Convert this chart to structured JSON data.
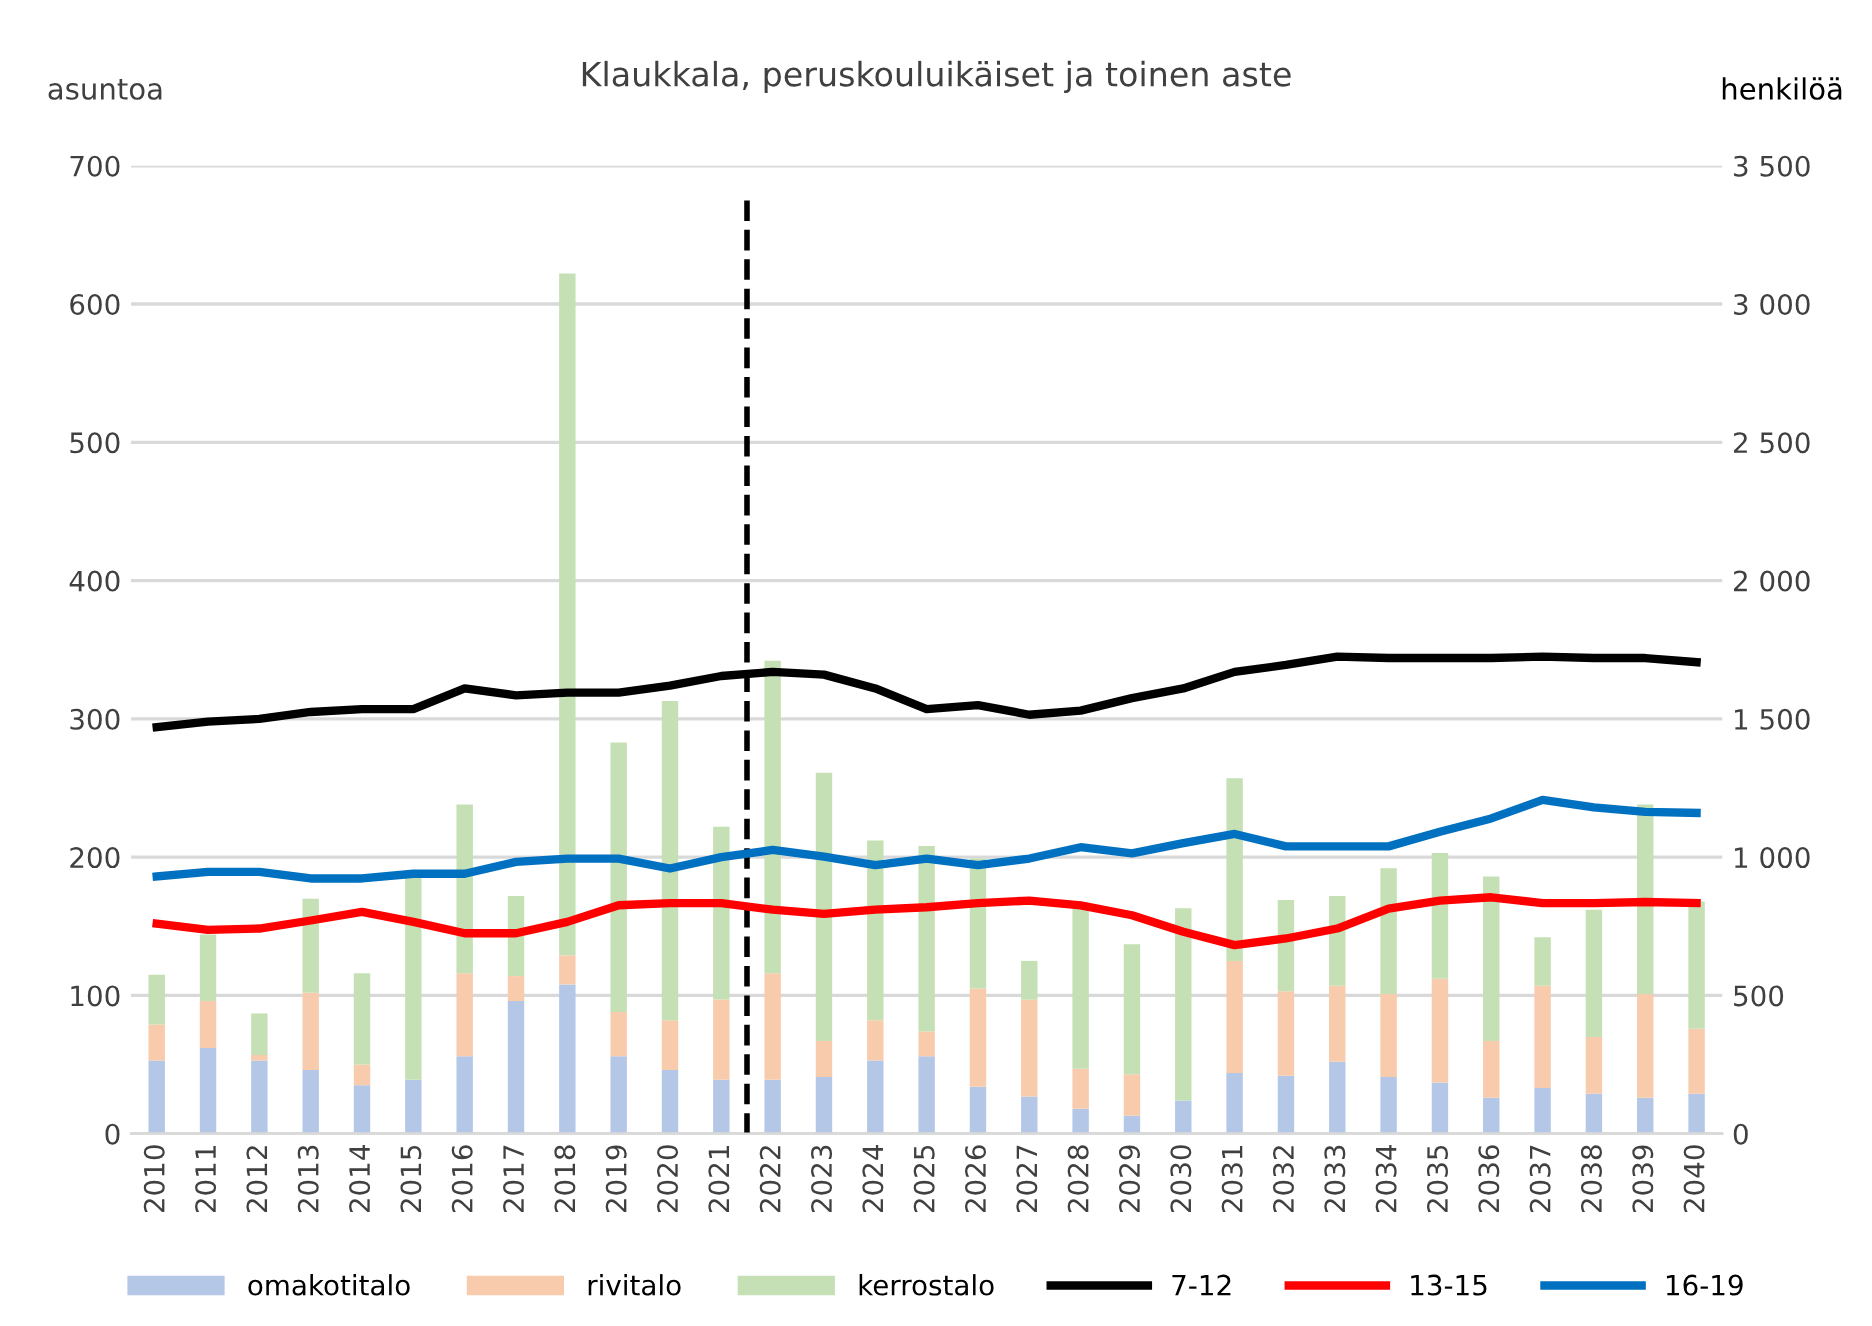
{
  "chart_data": {
    "type": "bar",
    "stacked": true,
    "title": "Klaukkala, peruskouluikäiset ja toinen aste",
    "ylabel": "asuntoa",
    "y2label": "henkilöä",
    "x": [
      2010,
      2011,
      2012,
      2013,
      2014,
      2015,
      2016,
      2017,
      2018,
      2019,
      2020,
      2021,
      2022,
      2023,
      2024,
      2025,
      2026,
      2027,
      2028,
      2029,
      2030,
      2031,
      2032,
      2033,
      2034,
      2035,
      2036,
      2037,
      2038,
      2039,
      2040
    ],
    "xlim": [
      2009.5,
      2040.5
    ],
    "xticks": [
      2010,
      2011,
      2012,
      2013,
      2014,
      2015,
      2016,
      2017,
      2018,
      2019,
      2020,
      2021,
      2022,
      2023,
      2024,
      2025,
      2026,
      2027,
      2028,
      2029,
      2030,
      2031,
      2032,
      2033,
      2034,
      2035,
      2036,
      2037,
      2038,
      2039,
      2040
    ],
    "ylim": [
      0,
      700
    ],
    "yticks": [
      0,
      100,
      200,
      300,
      400,
      500,
      600,
      700
    ],
    "y2lim": [
      0,
      3500
    ],
    "y2ticks": [
      0,
      {
        "value": 500,
        "label": "500"
      },
      {
        "value": 1000,
        "label": "1 000"
      },
      {
        "value": 1500,
        "label": "1 500"
      },
      {
        "value": 2000,
        "label": "2 000"
      },
      {
        "value": 2500,
        "label": "2 500"
      },
      {
        "value": 3000,
        "label": "3 000"
      },
      {
        "value": 3500,
        "label": "3 500"
      }
    ],
    "grid": "y",
    "legend": "bottom",
    "ref_lines": [
      {
        "axis": "x",
        "value": 2021.5,
        "color": "#000000",
        "line_style": "dashed"
      }
    ],
    "series": [
      {
        "name": "omakotitalo",
        "color": "#b4c7e7",
        "values": [
          53,
          62,
          53,
          46,
          35,
          39,
          56,
          96,
          108,
          56,
          46,
          39,
          39,
          41,
          53,
          56,
          34,
          27,
          18,
          13,
          24,
          44,
          42,
          52,
          41,
          37,
          26,
          33,
          29,
          26,
          29
        ]
      },
      {
        "name": "rivitalo",
        "color": "#f8cbad",
        "values": [
          26,
          34,
          4,
          56,
          15,
          0,
          60,
          18,
          21,
          32,
          36,
          58,
          77,
          26,
          29,
          18,
          71,
          70,
          29,
          30,
          0,
          81,
          61,
          55,
          60,
          75,
          41,
          74,
          41,
          75,
          47
        ]
      },
      {
        "name": "kerrostalo",
        "color": "#c5e0b4",
        "values": [
          36,
          48,
          30,
          68,
          66,
          146,
          122,
          58,
          493,
          195,
          231,
          125,
          226,
          194,
          130,
          134,
          94,
          28,
          116,
          94,
          139,
          132,
          66,
          65,
          91,
          91,
          119,
          35,
          92,
          137,
          92
        ]
      },
      {
        "name": "7-12",
        "type": "line",
        "axis": "y2",
        "color": "#000000",
        "values": [
          1470,
          1490,
          1500,
          1525,
          1535,
          1535,
          1610,
          1585,
          1595,
          1595,
          1620,
          1655,
          1670,
          1660,
          1610,
          1535,
          1550,
          1515,
          1530,
          1575,
          1610,
          1670,
          1695,
          1725,
          1720,
          1720,
          1720,
          1725,
          1720,
          1720,
          1705
        ]
      },
      {
        "name": "13-15",
        "type": "line",
        "axis": "y2",
        "color": "#ff0000",
        "values": [
          760,
          737,
          742,
          771,
          802,
          766,
          725,
          725,
          766,
          826,
          834,
          834,
          810,
          795,
          810,
          819,
          834,
          843,
          826,
          790,
          730,
          682,
          706,
          742,
          814,
          843,
          855,
          834,
          834,
          838,
          834
        ]
      },
      {
        "name": "16-19",
        "type": "line",
        "axis": "y2",
        "color": "#0070c0",
        "values": [
          930,
          947,
          947,
          923,
          923,
          940,
          940,
          983,
          995,
          995,
          959,
          1000,
          1026,
          1002,
          971,
          995,
          971,
          995,
          1036,
          1014,
          1051,
          1084,
          1039,
          1039,
          1039,
          1092,
          1140,
          1207,
          1180,
          1164,
          1160
        ]
      }
    ]
  }
}
